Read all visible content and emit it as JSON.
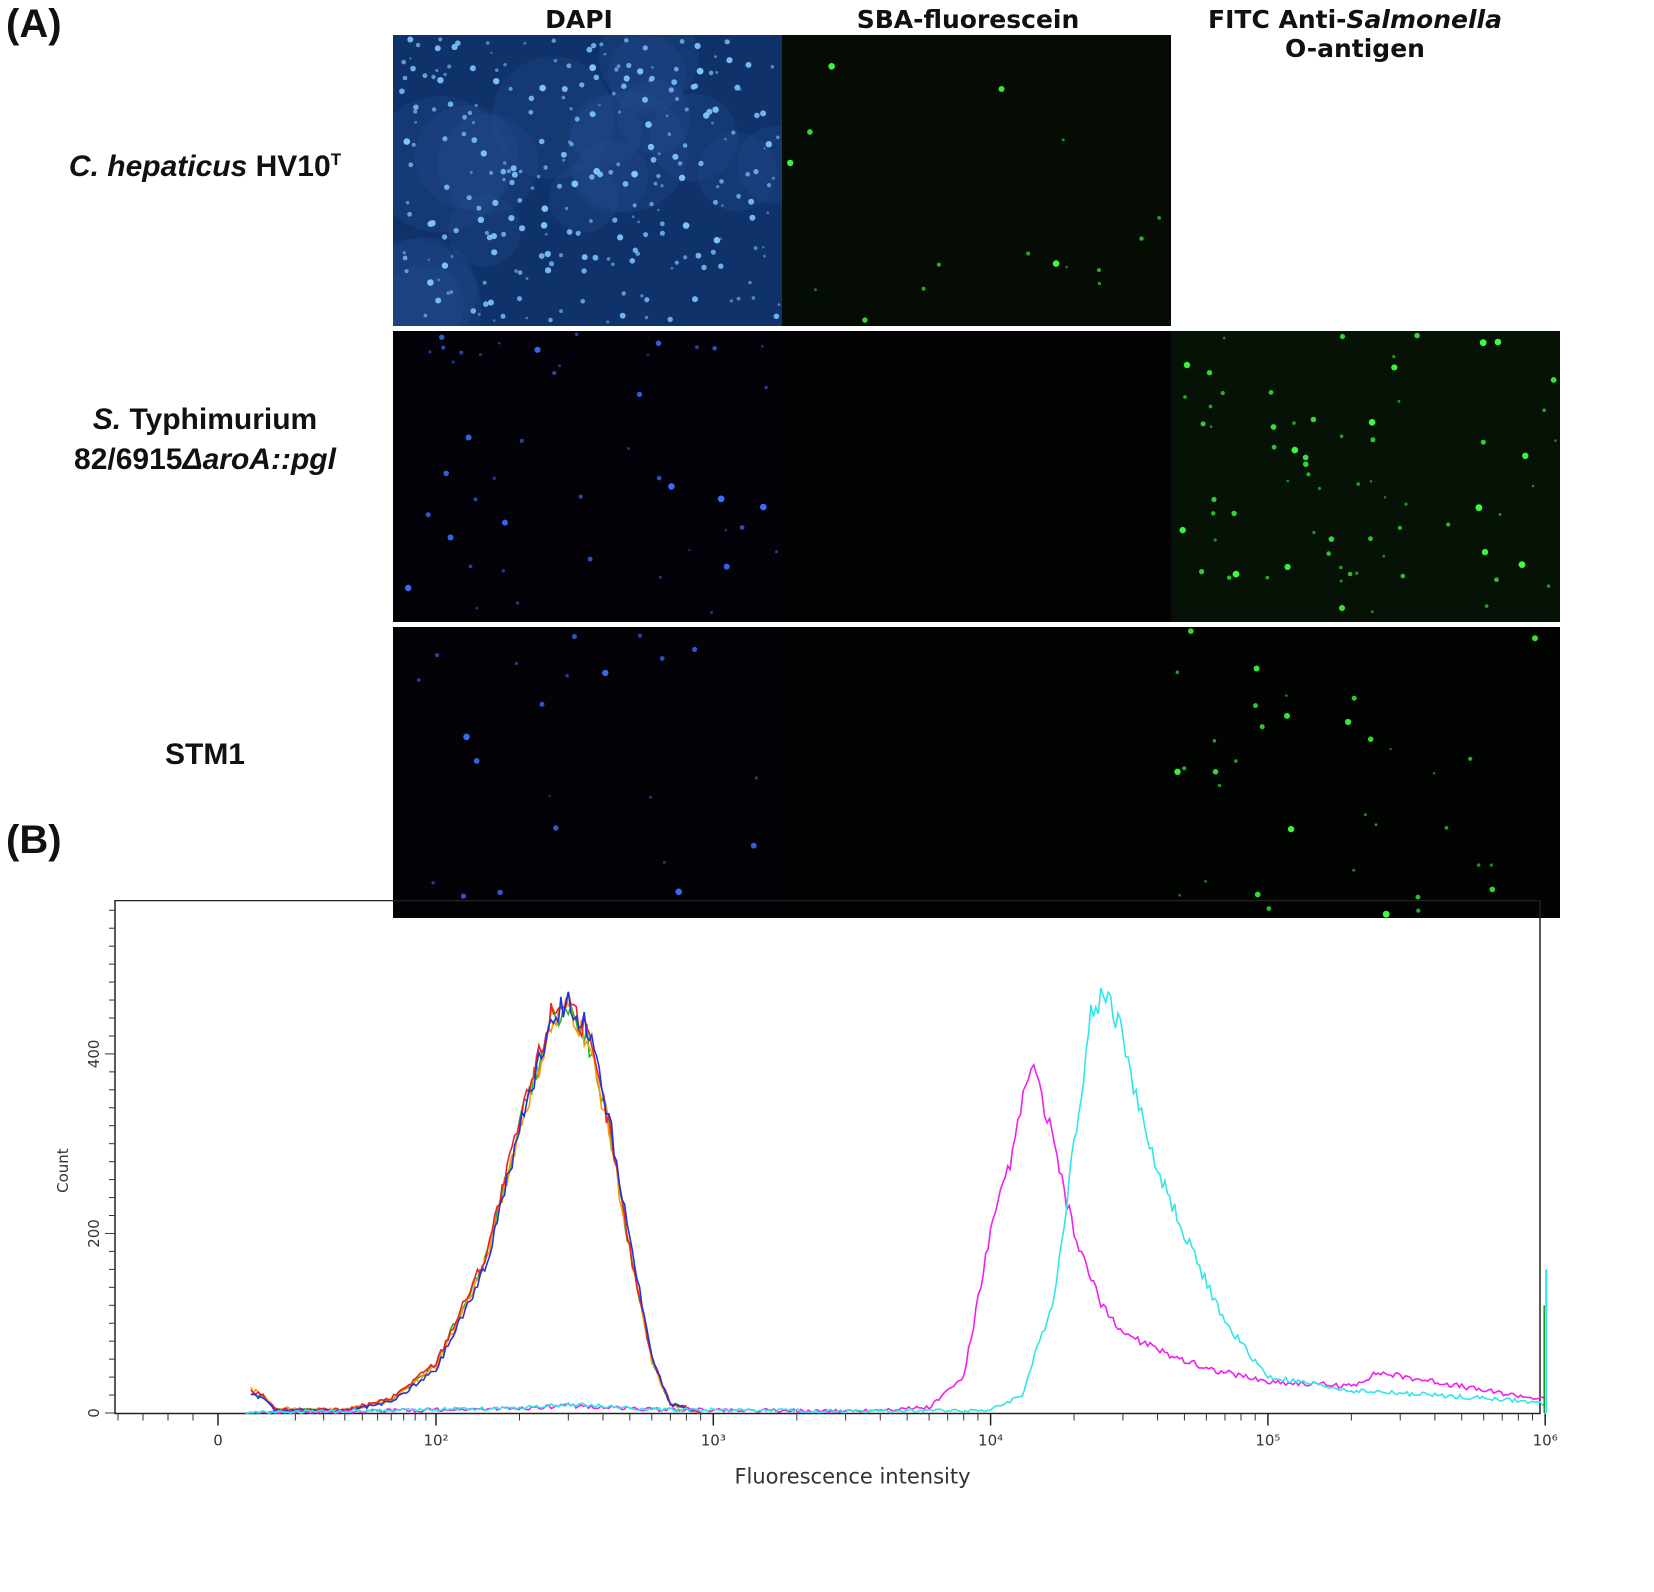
{
  "figure": {
    "panel_a_label": "(A)",
    "panel_b_label": "(B)",
    "columns": [
      {
        "text": "DAPI"
      },
      {
        "text": "SBA-fluorescein"
      },
      {
        "text_prefix": "FITC Anti-",
        "text_italic": "Salmonella",
        "text_line2": "O-antigen"
      }
    ],
    "rows": [
      {
        "italic": "C. hepaticus",
        "rest": " HV10",
        "sup": "T"
      },
      {
        "italic": "S.",
        "rest": " Typhimurium",
        "line2_prefix": "82/6915",
        "line2_italic": "ΔaroA::pgl"
      },
      {
        "label": "STM1"
      }
    ],
    "tiles": [
      {
        "row": 0,
        "col": 0,
        "stain": "blue",
        "background": "#10326a",
        "cells": 260
      },
      {
        "row": 0,
        "col": 1,
        "stain": "green",
        "background": "#050c03",
        "cells": 16
      },
      {
        "row": 1,
        "col": 0,
        "stain": "blue",
        "background": "#020208",
        "cells": 45
      },
      {
        "row": 1,
        "col": 1,
        "stain": "none",
        "background": "#020202",
        "cells": 0
      },
      {
        "row": 1,
        "col": 2,
        "stain": "green",
        "background": "#061205",
        "cells": 70
      },
      {
        "row": 2,
        "col": 0,
        "stain": "blue",
        "background": "#020207",
        "cells": 22
      },
      {
        "row": 2,
        "col": 1,
        "stain": "none",
        "background": "#020202",
        "cells": 0
      },
      {
        "row": 2,
        "col": 2,
        "stain": "green",
        "background": "#020402",
        "cells": 35
      }
    ]
  },
  "chart_data": {
    "type": "line",
    "xlabel": "Fluorescence intensity",
    "ylabel": "Count",
    "x_scale": "log",
    "xlim": [
      -8,
      1000000
    ],
    "ylim": [
      0,
      560
    ],
    "x_ticks": [
      "0",
      "10²",
      "10³",
      "10⁴",
      "10⁵",
      "10⁶"
    ],
    "x_tick_values": [
      0,
      100,
      1000,
      10000,
      100000,
      1000000
    ],
    "y_ticks": [
      0,
      200,
      400
    ],
    "series": [
      {
        "color": "#22bb22",
        "x": [
          1.5,
          3,
          5,
          30,
          60,
          100,
          150,
          200,
          260,
          300,
          350,
          420,
          500,
          600,
          700,
          900
        ],
        "y": [
          22,
          18,
          4,
          3,
          15,
          55,
          170,
          320,
          440,
          450,
          420,
          320,
          180,
          60,
          10,
          1
        ]
      },
      {
        "color": "#ff9900",
        "x": [
          1.5,
          3,
          5,
          30,
          60,
          100,
          150,
          200,
          260,
          300,
          350,
          420,
          500,
          600,
          700,
          900
        ],
        "y": [
          26,
          22,
          5,
          3,
          14,
          52,
          165,
          318,
          430,
          455,
          418,
          318,
          178,
          58,
          9,
          1
        ]
      },
      {
        "color": "#ee2222",
        "x": [
          1.5,
          3,
          5,
          30,
          60,
          100,
          150,
          200,
          260,
          300,
          350,
          420,
          500,
          600,
          700,
          900
        ],
        "y": [
          24,
          20,
          4,
          3,
          16,
          56,
          172,
          322,
          445,
          465,
          422,
          322,
          182,
          62,
          11,
          1
        ]
      },
      {
        "color": "#2233dd",
        "x": [
          1.5,
          3,
          5,
          30,
          60,
          100,
          150,
          200,
          260,
          300,
          350,
          420,
          500,
          600,
          700,
          900
        ],
        "y": [
          20,
          18,
          3,
          2,
          12,
          48,
          160,
          315,
          440,
          460,
          430,
          330,
          190,
          65,
          10,
          1
        ]
      },
      {
        "color": "#ee22ee",
        "x": [
          1,
          200,
          300,
          600,
          3000,
          6000,
          8000,
          10000,
          12000,
          14000,
          16000,
          20000,
          25000,
          30000,
          40000,
          60000,
          100000,
          200000,
          250000,
          400000,
          600000,
          1000000
        ],
        "y": [
          0,
          5,
          8,
          4,
          2,
          6,
          40,
          200,
          290,
          390,
          330,
          200,
          120,
          90,
          70,
          50,
          35,
          30,
          45,
          35,
          25,
          15
        ]
      },
      {
        "color": "#33e6e6",
        "x": [
          1,
          200,
          300,
          600,
          3000,
          10000,
          13000,
          17000,
          20000,
          23000,
          26000,
          30000,
          35000,
          40000,
          50000,
          70000,
          100000,
          200000,
          400000,
          700000,
          1000000
        ],
        "y": [
          0,
          6,
          10,
          4,
          2,
          3,
          20,
          130,
          300,
          440,
          470,
          420,
          330,
          270,
          200,
          100,
          40,
          25,
          20,
          15,
          10
        ]
      }
    ]
  }
}
